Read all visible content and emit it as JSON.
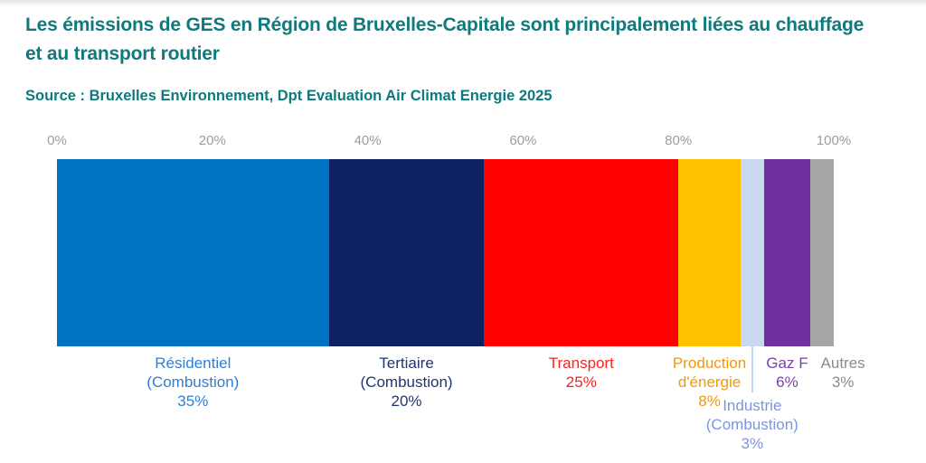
{
  "page": {
    "title_lines": [
      "Les émissions de GES en Région de Bruxelles-Capitale sont principalement liées au chauffage",
      "et au transport routier"
    ],
    "source": "Source : Bruxelles Environnement, Dpt Evaluation Air Climat Energie 2025",
    "title_color": "#0E7A7D"
  },
  "chart_data": {
    "type": "bar",
    "variant": "horizontal-stacked-100pct",
    "title": "Les émissions de GES en Région de Bruxelles-Capitale sont principalement liées au chauffage et au transport routier",
    "source": "Source : Bruxelles Environnement, Dpt Evaluation Air Climat Energie 2025",
    "axis": {
      "position": "top",
      "range": [
        0,
        100
      ],
      "ticks": [
        "0%",
        "20%",
        "40%",
        "60%",
        "80%",
        "100%"
      ],
      "tick_color": "#9C9C9C",
      "grid": false
    },
    "legend_position": "below-bar",
    "segments": [
      {
        "name": "Résidentiel (Combustion)",
        "value": 35,
        "value_label": "35%",
        "label_lines": [
          "Résidentiel",
          "(Combustion)",
          "35%"
        ],
        "color": "#0072C2",
        "label_color": "#2E7FD6",
        "label_row": 1
      },
      {
        "name": "Tertiaire (Combustion)",
        "value": 20,
        "value_label": "20%",
        "label_lines": [
          "Tertiaire",
          "(Combustion)",
          "20%"
        ],
        "color": "#0E2161",
        "label_color": "#233570",
        "label_row": 1
      },
      {
        "name": "Transport",
        "value": 25,
        "value_label": "25%",
        "label_lines": [
          "Transport",
          "25%"
        ],
        "color": "#FE0000",
        "label_color": "#F8221F",
        "label_row": 1
      },
      {
        "name": "Production d'énergie",
        "value": 8,
        "value_label": "8%",
        "label_lines": [
          "Production",
          "d'énergie",
          "8%"
        ],
        "color": "#FFC000",
        "label_color": "#F2980B",
        "label_row": 1
      },
      {
        "name": "Industrie (Combustion)",
        "value": 3,
        "value_label": "3%",
        "label_lines": [
          "Industrie",
          "(Combustion)",
          "3%"
        ],
        "color": "#CBD9F0",
        "label_color": "#7B96DC",
        "label_row": 2,
        "leader_line": true,
        "leader_color": "#C4D3EC"
      },
      {
        "name": "Gaz F",
        "value": 6,
        "value_label": "6%",
        "label_lines": [
          "Gaz F",
          "6%"
        ],
        "color": "#7030A0",
        "label_color": "#7B3FAE",
        "label_row": 1
      },
      {
        "name": "Autres",
        "value": 3,
        "value_label": "3%",
        "label_lines": [
          "Autres",
          "3%"
        ],
        "color": "#A6A6A6",
        "label_color": "#8C8C8C",
        "label_row": 1,
        "label_dx": 23
      }
    ]
  }
}
